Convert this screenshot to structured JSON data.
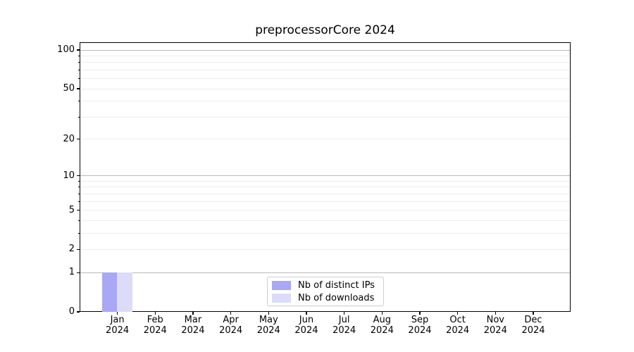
{
  "chart_data": {
    "type": "bar",
    "title": "preprocessorCore 2024",
    "year_label": "2024",
    "categories": [
      "Jan",
      "Feb",
      "Mar",
      "Apr",
      "May",
      "Jun",
      "Jul",
      "Aug",
      "Sep",
      "Oct",
      "Nov",
      "Dec"
    ],
    "series": [
      {
        "name": "Nb of distinct IPs",
        "color": "#a8a8f5",
        "values": [
          1,
          0,
          0,
          0,
          0,
          0,
          0,
          0,
          0,
          0,
          0,
          0
        ]
      },
      {
        "name": "Nb of downloads",
        "color": "#dcdcf8",
        "values": [
          1,
          0,
          0,
          0,
          0,
          0,
          0,
          0,
          0,
          0,
          0,
          0
        ]
      }
    ],
    "yscale": "log1p",
    "ylim": [
      0,
      115
    ],
    "y_tick_labels": [
      0,
      1,
      2,
      5,
      10,
      20,
      50,
      100
    ],
    "y_major_gridlines": [
      1,
      10,
      100
    ],
    "y_minor_gridlines": [
      2,
      3,
      4,
      5,
      6,
      7,
      8,
      9,
      20,
      30,
      40,
      50,
      60,
      70,
      80,
      90
    ],
    "grid": true,
    "legend_position": "lower center"
  },
  "legend": {
    "items": [
      {
        "label": "Nb of distinct IPs",
        "color": "#a8a8f5"
      },
      {
        "label": "Nb of downloads",
        "color": "#dcdcf8"
      }
    ]
  },
  "colors": {
    "background": "#ffffff",
    "spine": "#000000",
    "major_grid": "#b9b9b9",
    "minor_grid": "#ececec",
    "text": "#000000"
  }
}
